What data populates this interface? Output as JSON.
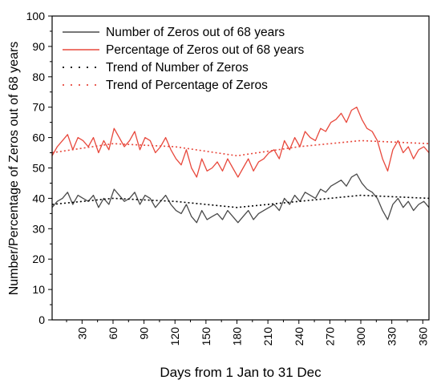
{
  "chart_data": {
    "type": "line",
    "title": "",
    "xlabel": "Days from 1 Jan to 31 Dec",
    "ylabel": "Number/Percentage of Zeros out of 68 years",
    "xlim": [
      1,
      366
    ],
    "ylim": [
      0,
      100
    ],
    "xticks": [
      30,
      60,
      90,
      120,
      150,
      180,
      210,
      240,
      270,
      300,
      330,
      360
    ],
    "yticks": [
      0,
      10,
      20,
      30,
      40,
      50,
      60,
      70,
      80,
      90,
      100
    ],
    "grid": false,
    "legend_position": "top-left",
    "series": [
      {
        "name": "Number of Zeros out of 68 years",
        "color": "#4a4a4a",
        "style": "solid",
        "x": [
          1,
          6,
          11,
          16,
          21,
          26,
          31,
          36,
          41,
          46,
          51,
          56,
          61,
          66,
          71,
          76,
          81,
          86,
          91,
          96,
          101,
          106,
          111,
          116,
          121,
          126,
          131,
          136,
          141,
          146,
          151,
          156,
          161,
          166,
          171,
          176,
          181,
          186,
          191,
          196,
          201,
          206,
          211,
          216,
          221,
          226,
          231,
          236,
          241,
          246,
          251,
          256,
          261,
          266,
          271,
          276,
          281,
          286,
          291,
          296,
          301,
          306,
          311,
          316,
          321,
          326,
          331,
          336,
          341,
          346,
          351,
          356,
          361,
          366
        ],
        "y": [
          37,
          39,
          40,
          42,
          38,
          41,
          40,
          39,
          41,
          37,
          40,
          38,
          43,
          41,
          39,
          40,
          42,
          38,
          41,
          40,
          37,
          39,
          41,
          38,
          36,
          35,
          38,
          34,
          32,
          36,
          33,
          34,
          35,
          33,
          36,
          34,
          32,
          34,
          36,
          33,
          35,
          36,
          37,
          38,
          36,
          40,
          38,
          41,
          39,
          42,
          41,
          40,
          43,
          42,
          44,
          45,
          46,
          44,
          47,
          48,
          45,
          43,
          42,
          40,
          36,
          33,
          38,
          40,
          37,
          39,
          36,
          38,
          39,
          37
        ]
      },
      {
        "name": "Percentage of Zeros out of 68 years",
        "color": "#e8483c",
        "style": "solid",
        "x": [
          1,
          6,
          11,
          16,
          21,
          26,
          31,
          36,
          41,
          46,
          51,
          56,
          61,
          66,
          71,
          76,
          81,
          86,
          91,
          96,
          101,
          106,
          111,
          116,
          121,
          126,
          131,
          136,
          141,
          146,
          151,
          156,
          161,
          166,
          171,
          176,
          181,
          186,
          191,
          196,
          201,
          206,
          211,
          216,
          221,
          226,
          231,
          236,
          241,
          246,
          251,
          256,
          261,
          266,
          271,
          276,
          281,
          286,
          291,
          296,
          301,
          306,
          311,
          316,
          321,
          326,
          331,
          336,
          341,
          346,
          351,
          356,
          361,
          366
        ],
        "y": [
          54,
          57,
          59,
          61,
          56,
          60,
          59,
          57,
          60,
          55,
          59,
          56,
          63,
          60,
          57,
          59,
          62,
          56,
          60,
          59,
          55,
          57,
          60,
          56,
          53,
          51,
          56,
          50,
          47,
          53,
          49,
          50,
          52,
          49,
          53,
          50,
          47,
          50,
          53,
          49,
          52,
          53,
          55,
          56,
          53,
          59,
          56,
          60,
          57,
          62,
          60,
          59,
          63,
          62,
          65,
          66,
          68,
          65,
          69,
          70,
          66,
          63,
          62,
          59,
          53,
          49,
          56,
          59,
          55,
          57,
          53,
          56,
          57,
          55
        ]
      },
      {
        "name": "Trend of Number of Zeros",
        "color": "#000000",
        "style": "dotted",
        "x": [
          1,
          60,
          120,
          180,
          240,
          300,
          366
        ],
        "y": [
          38,
          40,
          39,
          37,
          39,
          41,
          40
        ]
      },
      {
        "name": "Trend of Percentage of Zeros",
        "color": "#e8483c",
        "style": "dotted",
        "x": [
          1,
          60,
          120,
          180,
          240,
          300,
          366
        ],
        "y": [
          55,
          58,
          57,
          54,
          57,
          59,
          58
        ]
      }
    ]
  }
}
